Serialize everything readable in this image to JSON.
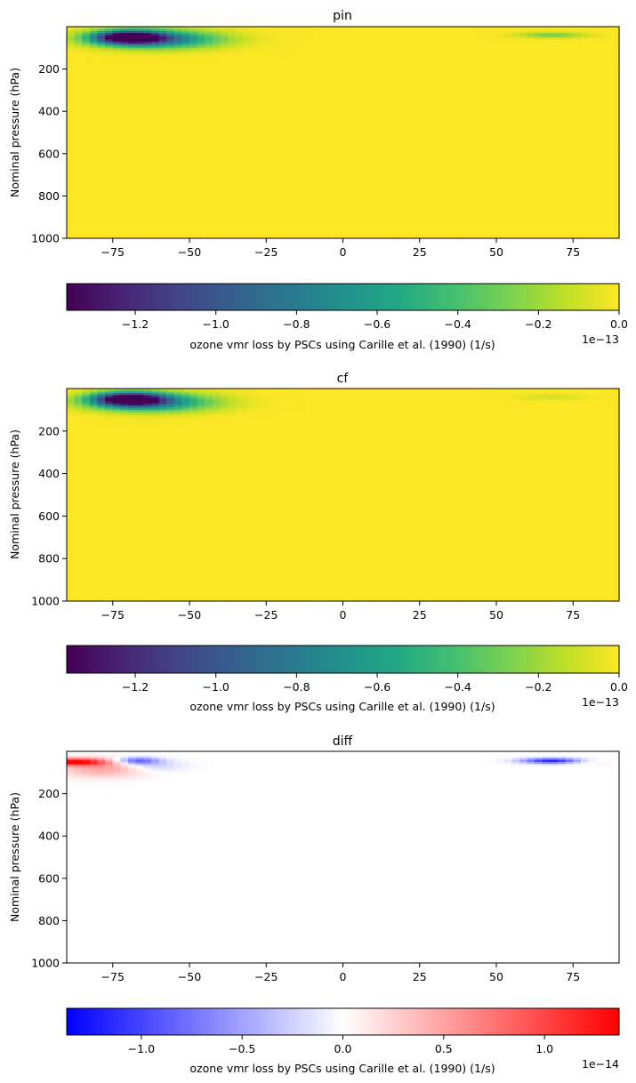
{
  "chart_data": [
    {
      "type": "heatmap",
      "title": "pin",
      "xlabel": "",
      "ylabel": "Nominal pressure (hPa)",
      "xlim": [
        -90,
        90
      ],
      "ylim": [
        1000,
        0
      ],
      "xticks": [
        -75,
        -50,
        -25,
        0,
        25,
        50,
        75
      ],
      "yticks": [
        200,
        400,
        600,
        800,
        1000
      ],
      "colormap": "viridis",
      "colorbar": {
        "label": "ozone vmr loss by PSCs using Carille et al. (1990) (1/s)",
        "range": [
          -1.37,
          0
        ],
        "ticks": [
          -1.2,
          -1.0,
          -0.8,
          -0.6,
          -0.4,
          -0.2,
          0.0
        ],
        "tick_labels": [
          "−1.2",
          "−1.0",
          "−0.8",
          "−0.6",
          "−0.4",
          "−0.2",
          "0.0"
        ],
        "scale_label": "1e−13",
        "orientation": "horizontal"
      },
      "features": [
        {
          "lat": -70,
          "p": 50,
          "value": -1.37,
          "lat_sigma": 8,
          "p_sigma": 22
        },
        {
          "lat": -60,
          "p": 60,
          "value": -0.8,
          "lat_sigma": 14,
          "p_sigma": 30
        },
        {
          "lat": 68,
          "p": 40,
          "value": -0.3,
          "lat_sigma": 8,
          "p_sigma": 10
        }
      ]
    },
    {
      "type": "heatmap",
      "title": "cf",
      "xlabel": "",
      "ylabel": "Nominal pressure (hPa)",
      "xlim": [
        -90,
        90
      ],
      "ylim": [
        1000,
        0
      ],
      "xticks": [
        -75,
        -50,
        -25,
        0,
        25,
        50,
        75
      ],
      "yticks": [
        200,
        400,
        600,
        800,
        1000
      ],
      "colormap": "viridis",
      "colorbar": {
        "label": "ozone vmr loss by PSCs using Carille et al. (1990) (1/s)",
        "range": [
          -1.37,
          0
        ],
        "ticks": [
          -1.2,
          -1.0,
          -0.8,
          -0.6,
          -0.4,
          -0.2,
          0.0
        ],
        "tick_labels": [
          "−1.2",
          "−1.0",
          "−0.8",
          "−0.6",
          "−0.4",
          "−0.2",
          "0.0"
        ],
        "scale_label": "1e−13",
        "orientation": "horizontal"
      },
      "features": [
        {
          "lat": -70,
          "p": 50,
          "value": -1.37,
          "lat_sigma": 8,
          "p_sigma": 22
        },
        {
          "lat": -62,
          "p": 65,
          "value": -0.75,
          "lat_sigma": 14,
          "p_sigma": 30
        },
        {
          "lat": 68,
          "p": 40,
          "value": -0.1,
          "lat_sigma": 8,
          "p_sigma": 10
        }
      ]
    },
    {
      "type": "heatmap",
      "title": "diff",
      "xlabel": "",
      "ylabel": "Nominal pressure (hPa)",
      "xlim": [
        -90,
        90
      ],
      "ylim": [
        1000,
        0
      ],
      "xticks": [
        -75,
        -50,
        -25,
        0,
        25,
        50,
        75
      ],
      "yticks": [
        200,
        400,
        600,
        800,
        1000
      ],
      "colormap": "bwr",
      "colorbar": {
        "label": "ozone vmr loss by PSCs using Carille et al. (1990) (1/s)",
        "range": [
          -1.37,
          1.37
        ],
        "ticks": [
          -1.0,
          -0.5,
          0.0,
          0.5,
          1.0
        ],
        "tick_labels": [
          "−1.0",
          "−0.5",
          "0.0",
          "0.5",
          "1.0"
        ],
        "scale_label": "1e−14",
        "orientation": "horizontal"
      },
      "features": [
        {
          "lat": -88,
          "p": 50,
          "value": 1.3,
          "lat_sigma": 8,
          "p_sigma": 12
        },
        {
          "lat": -78,
          "p": 80,
          "value": 0.5,
          "lat_sigma": 10,
          "p_sigma": 30
        },
        {
          "lat": -67,
          "p": 45,
          "value": -0.9,
          "lat_sigma": 5,
          "p_sigma": 12
        },
        {
          "lat": -62,
          "p": 70,
          "value": -0.3,
          "lat_sigma": 7,
          "p_sigma": 20
        },
        {
          "lat": 68,
          "p": 45,
          "value": -1.2,
          "lat_sigma": 7,
          "p_sigma": 9
        },
        {
          "lat": 80,
          "p": 50,
          "value": 0.15,
          "lat_sigma": 5,
          "p_sigma": 10
        }
      ]
    }
  ]
}
